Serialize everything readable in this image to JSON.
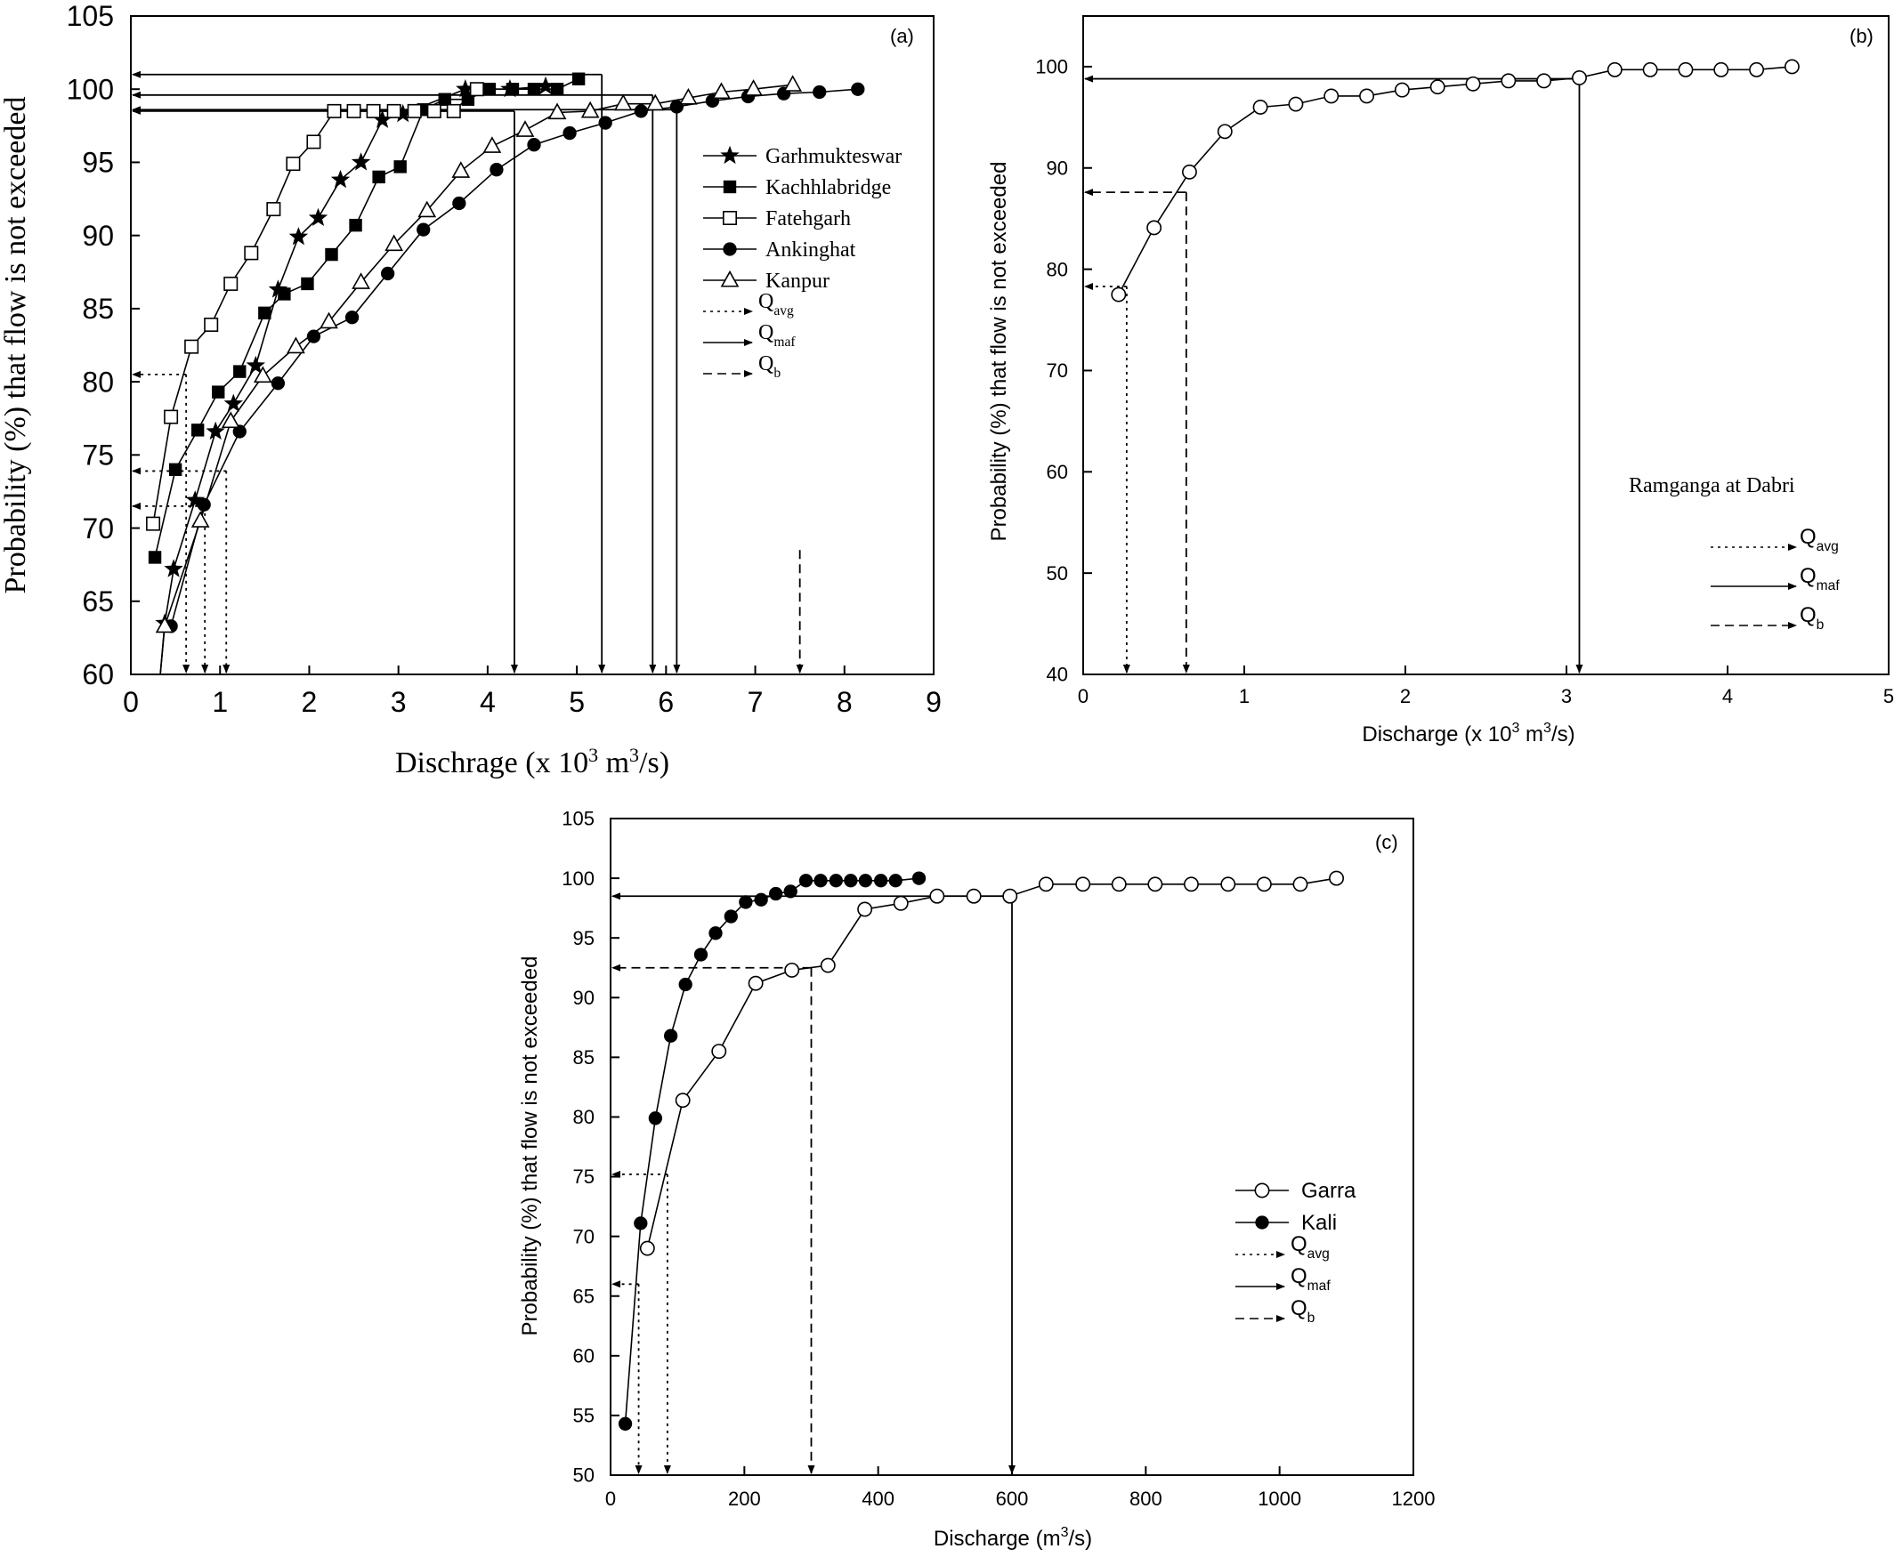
{
  "chart_data": [
    {
      "type": "line",
      "panel_label": "(a)",
      "title": "",
      "xlabel": "Dischrage (x 10",
      "xlabel_sup": "3",
      "xlabel_tail": " m",
      "xlabel_sup2": "3",
      "xlabel_end": "/s)",
      "ylabel": "Probability (%) that flow is not exceeded",
      "xlim": [
        0,
        9
      ],
      "ylim": [
        60,
        105
      ],
      "xticks": [
        "0",
        "1",
        "2",
        "3",
        "4",
        "5",
        "6",
        "7",
        "8",
        "9"
      ],
      "yticks": [
        "60",
        "65",
        "70",
        "75",
        "80",
        "85",
        "90",
        "95",
        "100",
        "105"
      ],
      "legend_position": "right-middle",
      "series": [
        {
          "name": "Garhmukteswar",
          "marker": "star",
          "points": [
            [
              0.38,
              63.5
            ],
            [
              0.48,
              67.2
            ],
            [
              0.72,
              71.9
            ],
            [
              0.95,
              76.6
            ],
            [
              1.15,
              78.5
            ],
            [
              1.4,
              81.1
            ],
            [
              1.65,
              86.3
            ],
            [
              1.88,
              89.9
            ],
            [
              2.1,
              91.2
            ],
            [
              2.35,
              93.8
            ],
            [
              2.58,
              95
            ],
            [
              2.82,
              97.9
            ],
            [
              3.05,
              98.3
            ],
            [
              3.75,
              100
            ],
            [
              4.25,
              100
            ],
            [
              4.65,
              100.2
            ]
          ]
        },
        {
          "name": "Kachhlabridge",
          "marker": "filled-square",
          "points": [
            [
              0.27,
              68
            ],
            [
              0.5,
              74
            ],
            [
              0.75,
              76.7
            ],
            [
              0.98,
              79.3
            ],
            [
              1.22,
              80.7
            ],
            [
              1.5,
              84.7
            ],
            [
              1.72,
              86
            ],
            [
              1.98,
              86.7
            ],
            [
              2.25,
              88.7
            ],
            [
              2.52,
              90.7
            ],
            [
              2.78,
              94
            ],
            [
              3.02,
              94.7
            ],
            [
              3.28,
              98.6
            ],
            [
              3.52,
              99.3
            ],
            [
              3.78,
              99.3
            ],
            [
              4.02,
              100
            ],
            [
              4.28,
              100
            ],
            [
              4.52,
              100
            ],
            [
              4.78,
              100
            ],
            [
              5.02,
              100.7
            ]
          ]
        },
        {
          "name": "Fatehgarh",
          "marker": "open-square",
          "points": [
            [
              0.25,
              70.3
            ],
            [
              0.45,
              77.6
            ],
            [
              0.68,
              82.4
            ],
            [
              0.9,
              83.9
            ],
            [
              1.12,
              86.7
            ],
            [
              1.35,
              88.8
            ],
            [
              1.6,
              91.8
            ],
            [
              1.82,
              94.9
            ],
            [
              2.05,
              96.4
            ],
            [
              2.28,
              98.5
            ],
            [
              2.5,
              98.5
            ],
            [
              2.72,
              98.5
            ],
            [
              2.95,
              98.5
            ],
            [
              3.18,
              98.5
            ],
            [
              3.4,
              98.5
            ],
            [
              3.62,
              98.5
            ],
            [
              3.88,
              100
            ]
          ]
        },
        {
          "name": "Ankinghat",
          "marker": "filled-circle",
          "points": [
            [
              0.45,
              63.3
            ],
            [
              0.82,
              71.6
            ],
            [
              1.22,
              76.6
            ],
            [
              1.65,
              79.9
            ],
            [
              2.05,
              83.1
            ],
            [
              2.48,
              84.4
            ],
            [
              2.88,
              87.4
            ],
            [
              3.28,
              90.4
            ],
            [
              3.68,
              92.2
            ],
            [
              4.1,
              94.5
            ],
            [
              4.52,
              96.2
            ],
            [
              4.92,
              97
            ],
            [
              5.32,
              97.7
            ],
            [
              5.72,
              98.5
            ],
            [
              6.12,
              98.8
            ],
            [
              6.52,
              99.2
            ],
            [
              6.92,
              99.5
            ],
            [
              7.32,
              99.7
            ],
            [
              7.72,
              99.8
            ],
            [
              8.15,
              100
            ]
          ]
        },
        {
          "name": "Kanpur",
          "marker": "open-triangle",
          "points": [
            [
              0.38,
              63.3
            ],
            [
              0.78,
              70.5
            ],
            [
              1.12,
              77.3
            ],
            [
              1.48,
              80.4
            ],
            [
              1.85,
              82.4
            ],
            [
              2.22,
              84.1
            ],
            [
              2.58,
              86.8
            ],
            [
              2.95,
              89.4
            ],
            [
              3.32,
              91.7
            ],
            [
              3.7,
              94.4
            ],
            [
              4.05,
              96.1
            ],
            [
              4.42,
              97.2
            ],
            [
              4.78,
              98.4
            ],
            [
              5.15,
              98.5
            ],
            [
              5.52,
              99
            ],
            [
              5.88,
              99
            ],
            [
              6.25,
              99.4
            ],
            [
              6.62,
              99.8
            ],
            [
              6.98,
              100
            ],
            [
              7.42,
              100.3
            ]
          ]
        }
      ],
      "guides": {
        "Q_avg": [
          [
            0.62,
            80.5
          ],
          [
            0.83,
            71.5
          ],
          [
            1.07,
            73.9
          ]
        ],
        "Q_maf": [
          [
            4.3,
            98.5
          ],
          [
            5.28,
            101
          ],
          [
            5.85,
            99.6
          ],
          [
            6.12,
            98.6
          ]
        ],
        "Q_b": [
          [
            7.5,
            68.5
          ]
        ]
      },
      "legend_guides": [
        "Q",
        "avg",
        "Q",
        "maf",
        "Q",
        "b"
      ]
    },
    {
      "type": "line",
      "panel_label": "(b)",
      "title": "",
      "annotation": "Ramganga at Dabri",
      "xlabel": "Discharge (x 10",
      "xlabel_sup": "3",
      "xlabel_tail": " m",
      "xlabel_sup2": "3",
      "xlabel_end": "/s)",
      "ylabel": "Probability (%) that flow is not exceeded",
      "xlim": [
        0,
        5
      ],
      "ylim": [
        40,
        105
      ],
      "xticks": [
        "0",
        "1",
        "2",
        "3",
        "4",
        "5"
      ],
      "yticks": [
        "40",
        "50",
        "60",
        "70",
        "80",
        "90",
        "100"
      ],
      "series": [
        {
          "name": "",
          "marker": "open-circle",
          "points": [
            [
              0.22,
              77.5
            ],
            [
              0.44,
              84.1
            ],
            [
              0.66,
              89.6
            ],
            [
              0.88,
              93.6
            ],
            [
              1.1,
              96
            ],
            [
              1.32,
              96.3
            ],
            [
              1.54,
              97.1
            ],
            [
              1.76,
              97.1
            ],
            [
              1.98,
              97.7
            ],
            [
              2.2,
              98
            ],
            [
              2.42,
              98.3
            ],
            [
              2.64,
              98.6
            ],
            [
              2.86,
              98.6
            ],
            [
              3.08,
              98.9
            ],
            [
              3.3,
              99.7
            ],
            [
              3.52,
              99.7
            ],
            [
              3.74,
              99.7
            ],
            [
              3.96,
              99.7
            ],
            [
              4.18,
              99.7
            ],
            [
              4.4,
              100
            ]
          ]
        }
      ],
      "guides": {
        "Q_avg": [
          [
            0.27,
            78.3
          ]
        ],
        "Q_maf": [
          [
            3.08,
            98.8
          ]
        ],
        "Q_b": [
          [
            0.64,
            87.6
          ]
        ]
      },
      "legend_guides": [
        "Q",
        "avg",
        "Q",
        "maf",
        "Q",
        "b"
      ]
    },
    {
      "type": "line",
      "panel_label": "(c)",
      "title": "",
      "xlabel": "Discharge (m",
      "xlabel_sup": "3",
      "xlabel_end": "/s)",
      "ylabel": "Probability (%) that flow is not exceeded",
      "xlim": [
        0,
        1200
      ],
      "ylim": [
        50,
        105
      ],
      "xticks": [
        "0",
        "200",
        "400",
        "600",
        "800",
        "1000",
        "1200"
      ],
      "yticks": [
        "50",
        "55",
        "60",
        "65",
        "70",
        "75",
        "80",
        "85",
        "90",
        "95",
        "100",
        "105"
      ],
      "legend_position": "bottom-right",
      "series": [
        {
          "name": "Garra",
          "marker": "open-circle",
          "points": [
            [
              55,
              69
            ],
            [
              108,
              81.4
            ],
            [
              162,
              85.5
            ],
            [
              217,
              91.2
            ],
            [
              271,
              92.3
            ],
            [
              325,
              92.7
            ],
            [
              380,
              97.4
            ],
            [
              434,
              97.9
            ],
            [
              488,
              98.5
            ],
            [
              543,
              98.5
            ],
            [
              597,
              98.5
            ],
            [
              651,
              99.5
            ],
            [
              706,
              99.5
            ],
            [
              760,
              99.5
            ],
            [
              814,
              99.5
            ],
            [
              868,
              99.5
            ],
            [
              923,
              99.5
            ],
            [
              977,
              99.5
            ],
            [
              1031,
              99.5
            ],
            [
              1085,
              100
            ]
          ]
        },
        {
          "name": "Kali",
          "marker": "filled-circle",
          "points": [
            [
              22,
              54.3
            ],
            [
              45,
              71.1
            ],
            [
              67,
              79.9
            ],
            [
              90,
              86.8
            ],
            [
              112,
              91.1
            ],
            [
              135,
              93.6
            ],
            [
              157,
              95.4
            ],
            [
              180,
              96.8
            ],
            [
              202,
              98
            ],
            [
              225,
              98.2
            ],
            [
              247,
              98.7
            ],
            [
              269,
              98.9
            ],
            [
              292,
              99.8
            ],
            [
              314,
              99.8
            ],
            [
              337,
              99.8
            ],
            [
              359,
              99.8
            ],
            [
              381,
              99.8
            ],
            [
              404,
              99.8
            ],
            [
              426,
              99.8
            ],
            [
              461,
              100
            ]
          ]
        }
      ],
      "guides": {
        "Q_avg": [
          [
            85,
            75.2
          ],
          [
            42,
            66
          ]
        ],
        "Q_maf": [
          [
            600,
            98.5
          ]
        ],
        "Q_b": [
          [
            300,
            92.5
          ]
        ]
      },
      "legend_guides": [
        "Q",
        "avg",
        "Q",
        "maf",
        "Q",
        "b"
      ]
    }
  ]
}
